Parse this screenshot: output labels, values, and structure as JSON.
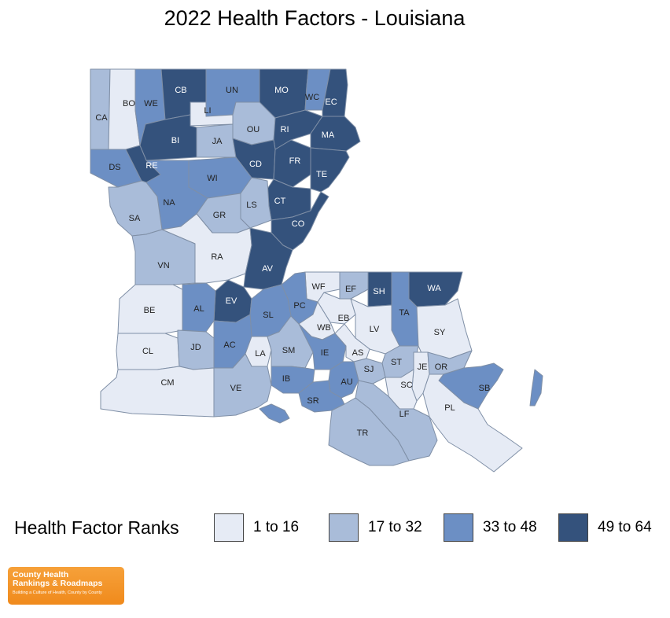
{
  "title": "2022 Health Factors - Louisiana",
  "colors": {
    "q1": "#e6ebf5",
    "q2": "#a9bcd9",
    "q3": "#6c8fc4",
    "q4": "#34527c",
    "border": "#7f8fa6"
  },
  "legend": {
    "title": "Health Factor Ranks",
    "items": [
      {
        "label": "1 to 16",
        "quartile": "q1"
      },
      {
        "label": "17 to 32",
        "quartile": "q2"
      },
      {
        "label": "33 to 48",
        "quartile": "q3"
      },
      {
        "label": "49 to 64",
        "quartile": "q4"
      }
    ]
  },
  "logo": {
    "line1": "County Health",
    "line2": "Rankings & Roadmaps",
    "tagline": "Building a Culture of Health, County by County"
  },
  "counties": [
    {
      "code": "CA",
      "quartile": "q2"
    },
    {
      "code": "BO",
      "quartile": "q1"
    },
    {
      "code": "WE",
      "quartile": "q3"
    },
    {
      "code": "CB",
      "quartile": "q4"
    },
    {
      "code": "UN",
      "quartile": "q3"
    },
    {
      "code": "MO",
      "quartile": "q4"
    },
    {
      "code": "WC",
      "quartile": "q3"
    },
    {
      "code": "EC",
      "quartile": "q4"
    },
    {
      "code": "LI",
      "quartile": "q1"
    },
    {
      "code": "OU",
      "quartile": "q2"
    },
    {
      "code": "RI",
      "quartile": "q4"
    },
    {
      "code": "MA",
      "quartile": "q4"
    },
    {
      "code": "BI",
      "quartile": "q4"
    },
    {
      "code": "JA",
      "quartile": "q2"
    },
    {
      "code": "DS",
      "quartile": "q3"
    },
    {
      "code": "RE",
      "quartile": "q4"
    },
    {
      "code": "CD",
      "quartile": "q4"
    },
    {
      "code": "FR",
      "quartile": "q4"
    },
    {
      "code": "TE",
      "quartile": "q4"
    },
    {
      "code": "WI",
      "quartile": "q3"
    },
    {
      "code": "NA",
      "quartile": "q3"
    },
    {
      "code": "CT",
      "quartile": "q4"
    },
    {
      "code": "LS",
      "quartile": "q2"
    },
    {
      "code": "GR",
      "quartile": "q2"
    },
    {
      "code": "SA",
      "quartile": "q2"
    },
    {
      "code": "CO",
      "quartile": "q4"
    },
    {
      "code": "RA",
      "quartile": "q1"
    },
    {
      "code": "VN",
      "quartile": "q2"
    },
    {
      "code": "AV",
      "quartile": "q4"
    },
    {
      "code": "WF",
      "quartile": "q1"
    },
    {
      "code": "EF",
      "quartile": "q2"
    },
    {
      "code": "SH",
      "quartile": "q4"
    },
    {
      "code": "WA",
      "quartile": "q4"
    },
    {
      "code": "EV",
      "quartile": "q4"
    },
    {
      "code": "PC",
      "quartile": "q3"
    },
    {
      "code": "BE",
      "quartile": "q1"
    },
    {
      "code": "AL",
      "quartile": "q3"
    },
    {
      "code": "SL",
      "quartile": "q3"
    },
    {
      "code": "EB",
      "quartile": "q1"
    },
    {
      "code": "TA",
      "quartile": "q3"
    },
    {
      "code": "WB",
      "quartile": "q1"
    },
    {
      "code": "LV",
      "quartile": "q1"
    },
    {
      "code": "SY",
      "quartile": "q1"
    },
    {
      "code": "CL",
      "quartile": "q1"
    },
    {
      "code": "JD",
      "quartile": "q2"
    },
    {
      "code": "AC",
      "quartile": "q3"
    },
    {
      "code": "LA",
      "quartile": "q1"
    },
    {
      "code": "SM",
      "quartile": "q2"
    },
    {
      "code": "IE",
      "quartile": "q3"
    },
    {
      "code": "AS",
      "quartile": "q1"
    },
    {
      "code": "ST",
      "quartile": "q2"
    },
    {
      "code": "JE",
      "quartile": "q1"
    },
    {
      "code": "OR",
      "quartile": "q2"
    },
    {
      "code": "SJ",
      "quartile": "q2"
    },
    {
      "code": "IB",
      "quartile": "q3"
    },
    {
      "code": "AU",
      "quartile": "q3"
    },
    {
      "code": "SC",
      "quartile": "q1"
    },
    {
      "code": "SB",
      "quartile": "q3"
    },
    {
      "code": "CM",
      "quartile": "q1"
    },
    {
      "code": "VE",
      "quartile": "q2"
    },
    {
      "code": "SR",
      "quartile": "q3"
    },
    {
      "code": "LF",
      "quartile": "q2"
    },
    {
      "code": "PL",
      "quartile": "q1"
    },
    {
      "code": "TR",
      "quartile": "q2"
    }
  ]
}
